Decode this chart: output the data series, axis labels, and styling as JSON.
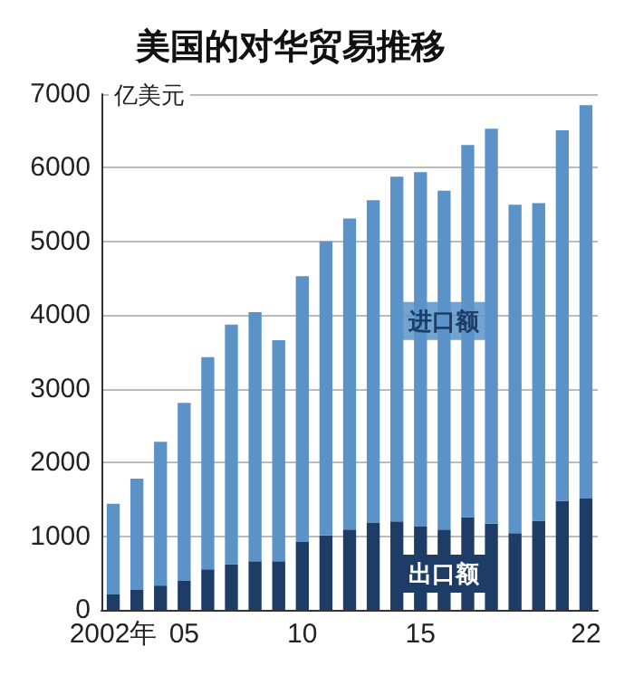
{
  "chart_data": {
    "type": "bar",
    "title": "美国的对华贸易推移",
    "ylabel": "亿美元",
    "stacked": true,
    "categories": [
      "2002年",
      null,
      null,
      "05",
      null,
      null,
      null,
      null,
      "10",
      null,
      null,
      null,
      null,
      "15",
      null,
      null,
      null,
      null,
      null,
      null,
      "22"
    ],
    "series": [
      {
        "name": "出口额",
        "color": "#1d3d66",
        "values": [
          210,
          270,
          330,
          400,
          550,
          620,
          660,
          660,
          920,
          1010,
          1090,
          1180,
          1200,
          1130,
          1090,
          1260,
          1170,
          1040,
          1210,
          1480,
          1510
        ]
      },
      {
        "name": "进口额",
        "color": "#5b93c9",
        "values": [
          1230,
          1510,
          1950,
          2410,
          2880,
          3250,
          3380,
          3000,
          3610,
          3990,
          4220,
          4380,
          4680,
          4810,
          4600,
          5050,
          5360,
          4460,
          4310,
          5030,
          5340
        ]
      }
    ],
    "ylim": [
      0,
      7000
    ],
    "yticks": [
      0,
      1000,
      2000,
      3000,
      4000,
      5000,
      6000,
      7000
    ],
    "grid": "y",
    "legend": false
  }
}
